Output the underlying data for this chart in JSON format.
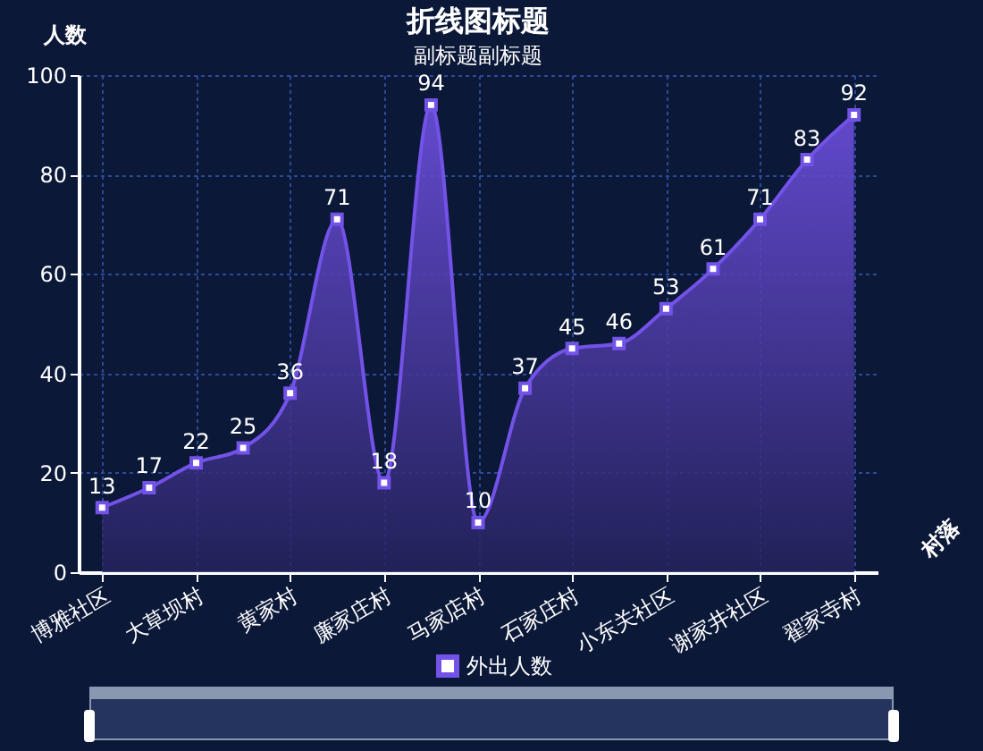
{
  "chart_data": {
    "type": "area",
    "title": "折线图标题",
    "subtitle": "副标题副标题",
    "xlabel": "村落",
    "ylabel": "人数",
    "categories": [
      "博雅社区",
      null,
      "大草坝村",
      null,
      "黄家村",
      null,
      "廉家庄村",
      null,
      "马家店村",
      null,
      "石家庄村",
      null,
      "小东关社区",
      null,
      "谢家井社区",
      null,
      "翟家寺村"
    ],
    "series": [
      {
        "name": "外出人数",
        "color": "#7352e8",
        "values": [
          13,
          17,
          22,
          25,
          36,
          71,
          18,
          94,
          10,
          37,
          45,
          46,
          53,
          61,
          71,
          83,
          92
        ]
      }
    ],
    "ylim": [
      0,
      100
    ],
    "yticks": [
      0,
      20,
      40,
      60,
      80,
      100
    ],
    "grid": true,
    "legend": "bottom",
    "marker": "square",
    "line_style": "solid",
    "data_labels": true
  }
}
